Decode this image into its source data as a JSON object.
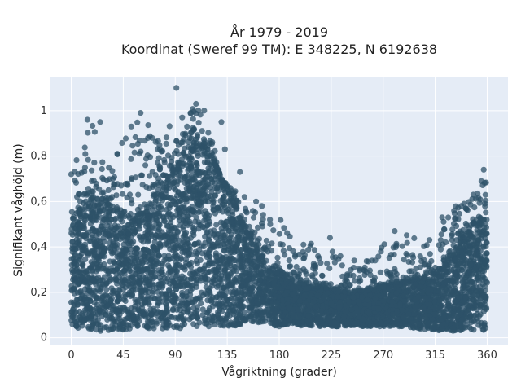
{
  "chart_data": {
    "type": "scatter",
    "title_line1": "År 1979 - 2019",
    "title_line2": "Koordinat (Sweref 99 TM): E 348225, N 6192638",
    "xlabel": "Vågriktning (grader)",
    "ylabel": "Signifikant våghöjd (m)",
    "xlim": [
      -18,
      378
    ],
    "ylim": [
      -0.03,
      1.15
    ],
    "xticks": [
      0,
      45,
      90,
      135,
      180,
      225,
      270,
      315,
      360
    ],
    "xtick_labels": [
      "0",
      "45",
      "90",
      "135",
      "180",
      "225",
      "270",
      "315",
      "360"
    ],
    "yticks": [
      0,
      0.2,
      0.4,
      0.6,
      0.8,
      1
    ],
    "ytick_labels": [
      "0",
      "0,2",
      "0,4",
      "0,6",
      "0,8",
      "1"
    ],
    "grid": true,
    "colors": {
      "marker": "#2e5168",
      "plot_bg": "#e5ecf6",
      "grid": "#ffffff"
    },
    "series": [
      {
        "envelope": {
          "direction": [
            0,
            10,
            20,
            30,
            40,
            50,
            60,
            70,
            80,
            90,
            100,
            110,
            120,
            130,
            140,
            150,
            160,
            170,
            180,
            200,
            220,
            240,
            260,
            280,
            300,
            320,
            330,
            340,
            350,
            360
          ],
          "min_height": [
            0.04,
            0.04,
            0.03,
            0.03,
            0.03,
            0.04,
            0.04,
            0.04,
            0.04,
            0.04,
            0.04,
            0.05,
            0.05,
            0.05,
            0.05,
            0.06,
            0.06,
            0.06,
            0.05,
            0.05,
            0.05,
            0.05,
            0.05,
            0.05,
            0.04,
            0.03,
            0.03,
            0.03,
            0.03,
            0.03
          ],
          "dense_top": [
            0.52,
            0.58,
            0.62,
            0.6,
            0.55,
            0.5,
            0.55,
            0.6,
            0.66,
            0.75,
            0.8,
            0.85,
            0.82,
            0.7,
            0.6,
            0.48,
            0.4,
            0.32,
            0.28,
            0.24,
            0.22,
            0.2,
            0.21,
            0.24,
            0.26,
            0.3,
            0.38,
            0.44,
            0.52,
            0.52
          ],
          "max_height": [
            0.72,
            0.96,
            0.93,
            0.72,
            0.85,
            0.9,
            0.99,
            0.92,
            0.85,
            1.1,
            1.0,
            1.03,
            0.92,
            0.7,
            0.66,
            0.6,
            0.55,
            0.55,
            0.55,
            0.4,
            0.44,
            0.3,
            0.35,
            0.47,
            0.44,
            0.53,
            0.58,
            0.6,
            0.63,
            0.74
          ]
        },
        "outliers": [
          {
            "x": 91,
            "y": 1.1
          },
          {
            "x": 108,
            "y": 1.03
          },
          {
            "x": 96,
            "y": 0.97
          },
          {
            "x": 115,
            "y": 1.0
          },
          {
            "x": 14,
            "y": 0.96
          },
          {
            "x": 25,
            "y": 0.95
          },
          {
            "x": 60,
            "y": 0.99
          },
          {
            "x": 52,
            "y": 0.93
          },
          {
            "x": 357,
            "y": 0.74
          },
          {
            "x": 355,
            "y": 0.69
          },
          {
            "x": 201,
            "y": 0.41
          },
          {
            "x": 224,
            "y": 0.44
          },
          {
            "x": 280,
            "y": 0.47
          },
          {
            "x": 233,
            "y": 0.36
          },
          {
            "x": 183,
            "y": 0.41
          },
          {
            "x": 321,
            "y": 0.53
          },
          {
            "x": 150,
            "y": 0.62
          },
          {
            "x": 165,
            "y": 0.58
          },
          {
            "x": 172,
            "y": 0.52
          },
          {
            "x": 0,
            "y": 0.72
          },
          {
            "x": 5,
            "y": 0.62
          },
          {
            "x": 36,
            "y": 0.7
          },
          {
            "x": 70,
            "y": 0.88
          },
          {
            "x": 130,
            "y": 0.95
          },
          {
            "x": 133,
            "y": 0.83
          },
          {
            "x": 146,
            "y": 0.73
          },
          {
            "x": 160,
            "y": 0.6
          },
          {
            "x": 310,
            "y": 0.43
          },
          {
            "x": 340,
            "y": 0.59
          },
          {
            "x": 348,
            "y": 0.63
          },
          {
            "x": 268,
            "y": 0.38
          },
          {
            "x": 245,
            "y": 0.34
          }
        ]
      }
    ]
  }
}
